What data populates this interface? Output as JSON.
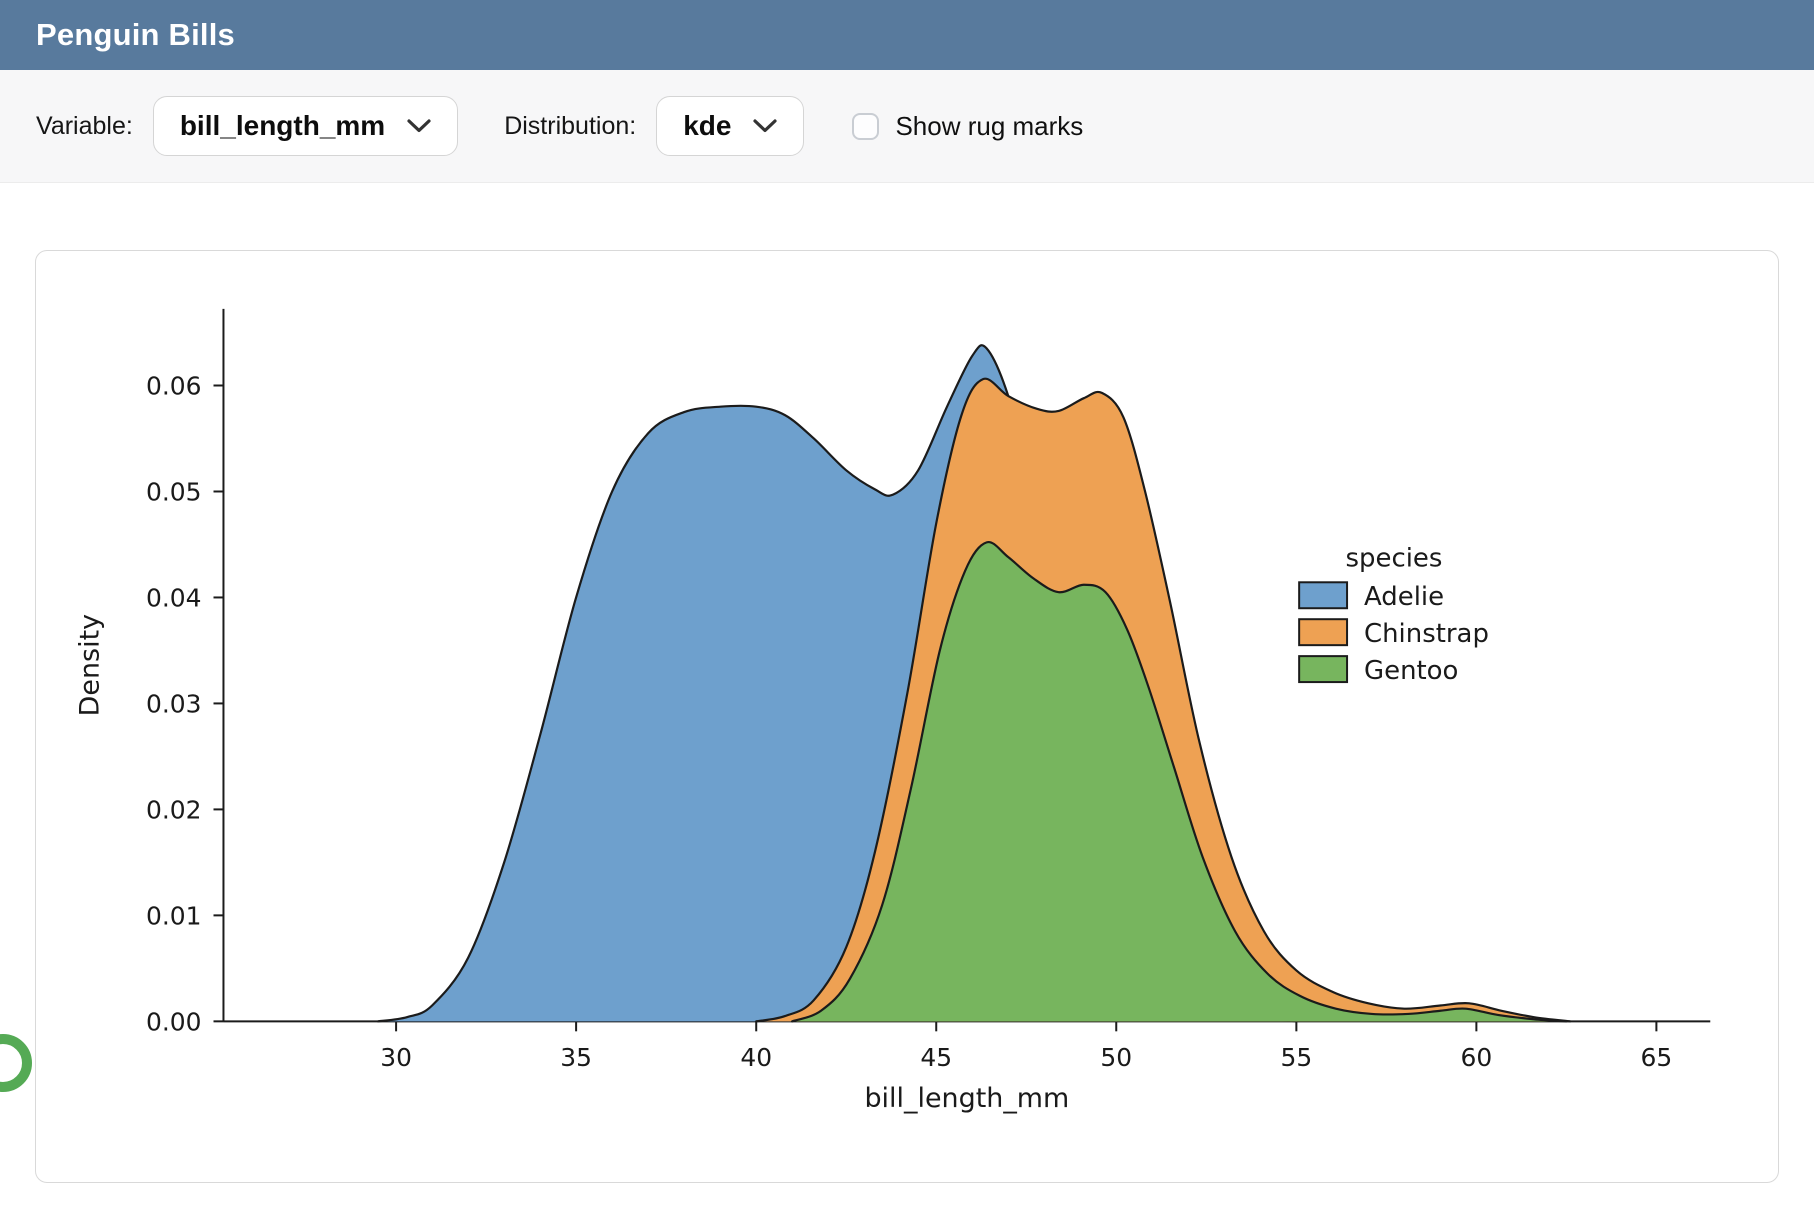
{
  "header": {
    "title": "Penguin Bills"
  },
  "toolbar": {
    "variable_label": "Variable:",
    "variable_value": "bill_length_mm",
    "distribution_label": "Distribution:",
    "distribution_value": "kde",
    "rug_label": "Show rug marks",
    "rug_checked": false
  },
  "chart_data": {
    "type": "area",
    "subtype": "kde-density",
    "title": "",
    "xlabel": "bill_length_mm",
    "ylabel": "Density",
    "xlim": [
      25.2,
      66.5
    ],
    "ylim": [
      0,
      0.067
    ],
    "xticks": [
      30,
      35,
      40,
      45,
      50,
      55,
      60,
      65
    ],
    "yticks": [
      0,
      0.01,
      0.02,
      0.03,
      0.04,
      0.05,
      0.06
    ],
    "ytick_labels": [
      "0.00",
      "0.01",
      "0.02",
      "0.03",
      "0.04",
      "0.05",
      "0.06"
    ],
    "grid": false,
    "legend": {
      "title": "species",
      "position": "center-right"
    },
    "series": [
      {
        "name": "Adelie",
        "color": "#6ea0cd",
        "points": [
          [
            29.5,
            0
          ],
          [
            30.3,
            0.0004
          ],
          [
            31,
            0.0015
          ],
          [
            32,
            0.006
          ],
          [
            33,
            0.015
          ],
          [
            34,
            0.027
          ],
          [
            35,
            0.04
          ],
          [
            36,
            0.05
          ],
          [
            37,
            0.0555
          ],
          [
            38,
            0.0575
          ],
          [
            39,
            0.058
          ],
          [
            40,
            0.058
          ],
          [
            40.8,
            0.0572
          ],
          [
            41.6,
            0.055
          ],
          [
            42.5,
            0.052
          ],
          [
            43.3,
            0.0502
          ],
          [
            43.8,
            0.0497
          ],
          [
            44.5,
            0.052
          ],
          [
            45.3,
            0.058
          ],
          [
            46,
            0.0628
          ],
          [
            46.4,
            0.0635
          ],
          [
            47,
            0.059
          ],
          [
            47.7,
            0.05
          ],
          [
            48.5,
            0.038
          ],
          [
            49.4,
            0.025
          ],
          [
            50.3,
            0.014
          ],
          [
            51.2,
            0.007
          ],
          [
            52.2,
            0.003
          ],
          [
            53.2,
            0.001
          ],
          [
            54.2,
            0.0003
          ],
          [
            55,
            0
          ]
        ]
      },
      {
        "name": "Chinstrap",
        "color": "#eea153",
        "points": [
          [
            40,
            0
          ],
          [
            40.8,
            0.0005
          ],
          [
            41.6,
            0.002
          ],
          [
            42.5,
            0.007
          ],
          [
            43.3,
            0.016
          ],
          [
            44.2,
            0.031
          ],
          [
            45,
            0.047
          ],
          [
            45.7,
            0.0572
          ],
          [
            46.3,
            0.0606
          ],
          [
            47,
            0.059
          ],
          [
            47.8,
            0.0578
          ],
          [
            48.4,
            0.0576
          ],
          [
            49.1,
            0.0588
          ],
          [
            49.6,
            0.0593
          ],
          [
            50.2,
            0.057
          ],
          [
            50.8,
            0.05
          ],
          [
            51.5,
            0.0395
          ],
          [
            52.3,
            0.0265
          ],
          [
            53.2,
            0.0155
          ],
          [
            54.1,
            0.0085
          ],
          [
            55,
            0.0048
          ],
          [
            56,
            0.0028
          ],
          [
            57,
            0.0017
          ],
          [
            58,
            0.0012
          ],
          [
            59,
            0.0015
          ],
          [
            59.8,
            0.0017
          ],
          [
            60.7,
            0.001
          ],
          [
            61.6,
            0.0004
          ],
          [
            62.6,
            0
          ]
        ]
      },
      {
        "name": "Gentoo",
        "color": "#77b55e",
        "points": [
          [
            41,
            0
          ],
          [
            41.8,
            0.001
          ],
          [
            42.6,
            0.004
          ],
          [
            43.5,
            0.011
          ],
          [
            44.3,
            0.022
          ],
          [
            45.1,
            0.035
          ],
          [
            45.8,
            0.0425
          ],
          [
            46.4,
            0.0452
          ],
          [
            47,
            0.0438
          ],
          [
            47.7,
            0.0418
          ],
          [
            48.4,
            0.0405
          ],
          [
            49.1,
            0.0412
          ],
          [
            49.7,
            0.0405
          ],
          [
            50.3,
            0.037
          ],
          [
            50.9,
            0.0315
          ],
          [
            51.6,
            0.024
          ],
          [
            52.4,
            0.0155
          ],
          [
            53.3,
            0.0085
          ],
          [
            54.2,
            0.0045
          ],
          [
            55.1,
            0.0024
          ],
          [
            56.1,
            0.0012
          ],
          [
            57.1,
            0.0007
          ],
          [
            58.1,
            0.0007
          ],
          [
            59,
            0.001
          ],
          [
            59.7,
            0.0012
          ],
          [
            60.6,
            0.0006
          ],
          [
            61.6,
            0.0002
          ],
          [
            62.5,
            0
          ]
        ]
      }
    ]
  },
  "colors": {
    "header_bg": "#587a9d",
    "toolbar_bg": "#f7f7f8",
    "axis_color": "#1b1b1b",
    "adelie": "#6ea0cd",
    "chinstrap": "#eea153",
    "gentoo": "#77b55e",
    "fab_green": "#55aa55"
  }
}
